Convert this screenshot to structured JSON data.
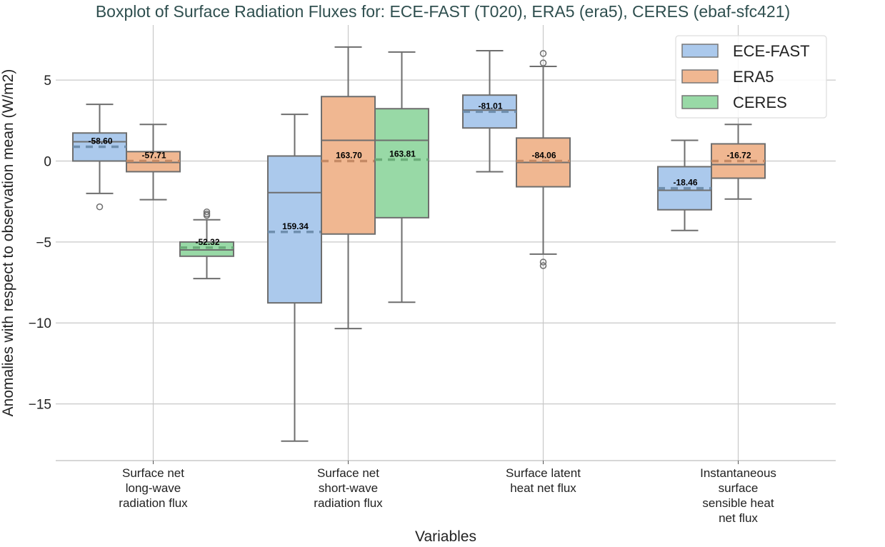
{
  "chart_data": {
    "type": "boxplot",
    "title": "Boxplot of Surface Radiation Fluxes for: ECE-FAST (T020), ERA5 (era5), CERES (ebaf-sfc421)",
    "xlabel": "Variables",
    "ylabel": "Anomalies with respect to observation mean (W/m2)",
    "ylim": [
      -18.5,
      8.4
    ],
    "yticks": [
      5,
      0,
      -5,
      -10,
      -15
    ],
    "ytick_labels": [
      "5",
      "0",
      "−5",
      "−10",
      "−15"
    ],
    "grid": true,
    "legend_position": "top-right",
    "categories": [
      [
        "Surface net",
        "long-wave",
        "radiation flux"
      ],
      [
        "Surface net",
        "short-wave",
        "radiation flux"
      ],
      [
        "Surface latent",
        "heat net flux"
      ],
      [
        "Instantaneous",
        "surface",
        "sensible heat",
        "net flux"
      ]
    ],
    "series": [
      {
        "name": "ECE-FAST",
        "color": "#abc9ec",
        "mean_color": "#6f8fae",
        "boxes": [
          {
            "whislo": -2.0,
            "q1": 0.0,
            "med": 1.19,
            "q3": 1.73,
            "whishi": 3.5,
            "mean": 0.88,
            "fliers": [
              -2.83
            ],
            "label": "-58.60"
          },
          {
            "whislo": -17.3,
            "q1": -8.76,
            "med": -1.95,
            "q3": 0.31,
            "whishi": 2.88,
            "mean": -4.38,
            "fliers": [],
            "label": "159.34"
          },
          {
            "whislo": -0.66,
            "q1": 2.04,
            "med": 3.14,
            "q3": 4.07,
            "whishi": 6.81,
            "mean": 3.05,
            "fliers": [],
            "label": "-81.01"
          },
          {
            "whislo": -4.29,
            "q1": -3.01,
            "med": -1.81,
            "q3": -0.35,
            "whishi": 1.28,
            "mean": -1.68,
            "fliers": [],
            "label": "-18.46"
          }
        ]
      },
      {
        "name": "ERA5",
        "color": "#f0b791",
        "mean_color": "#c58a65",
        "boxes": [
          {
            "whislo": -2.39,
            "q1": -0.66,
            "med": -0.09,
            "q3": 0.58,
            "whishi": 2.26,
            "mean": 0.0,
            "fliers": [],
            "label": "-57.71"
          },
          {
            "whislo": -10.35,
            "q1": -4.51,
            "med": 1.28,
            "q3": 3.98,
            "whishi": 7.04,
            "mean": 0.0,
            "fliers": [],
            "label": "163.70"
          },
          {
            "whislo": -5.75,
            "q1": -1.59,
            "med": -0.09,
            "q3": 1.42,
            "whishi": 5.84,
            "mean": 0.0,
            "fliers": [
              6.64,
              6.06,
              -6.24,
              -6.46
            ],
            "label": "-84.06"
          },
          {
            "whislo": -2.35,
            "q1": -1.06,
            "med": -0.22,
            "q3": 1.06,
            "whishi": 2.26,
            "mean": 0.0,
            "fliers": [],
            "label": "-16.72"
          }
        ]
      },
      {
        "name": "CERES",
        "color": "#98d9a6",
        "mean_color": "#6aab78",
        "boxes": [
          {
            "whislo": -7.26,
            "q1": -5.88,
            "med": -5.49,
            "q3": -5.0,
            "whishi": -3.63,
            "mean": -5.35,
            "fliers": [
              -3.14,
              -3.27,
              -3.36
            ],
            "label": "-52.32"
          },
          {
            "whislo": -8.72,
            "q1": -3.5,
            "med": 1.28,
            "q3": 3.23,
            "whishi": 6.73,
            "mean": 0.09,
            "fliers": [],
            "label": "163.81"
          },
          null,
          null
        ]
      }
    ]
  }
}
